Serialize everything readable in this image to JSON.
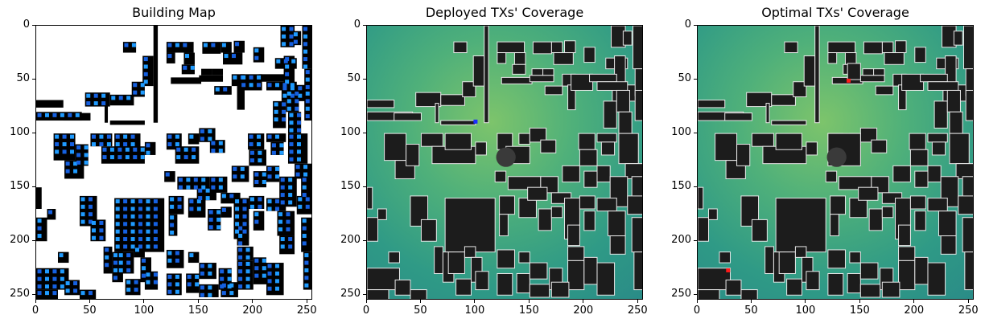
{
  "chart_data": [
    {
      "type": "heatmap",
      "title": "Building Map",
      "xlim": [
        0,
        255
      ],
      "ylim": [
        255,
        0
      ],
      "xticks": [
        0,
        50,
        100,
        150,
        200,
        250
      ],
      "yticks": [
        0,
        50,
        100,
        150,
        200,
        250
      ],
      "background_color": "#ffffff",
      "candidate_marker_colors": [
        "#1f9bff",
        "#1560e0"
      ]
    },
    {
      "type": "heatmap",
      "title": "Deployed TXs' Coverage",
      "xlim": [
        0,
        255
      ],
      "ylim": [
        255,
        0
      ],
      "xticks": [
        0,
        50,
        100,
        150,
        200,
        250
      ],
      "yticks": [
        0,
        50,
        100,
        150,
        200,
        250
      ],
      "transmitters": [
        {
          "x": 100,
          "y": 89,
          "color": "#1a2cff"
        }
      ]
    },
    {
      "type": "heatmap",
      "title": "Optimal TXs' Coverage",
      "xlim": [
        0,
        255
      ],
      "ylim": [
        255,
        0
      ],
      "xticks": [
        0,
        50,
        100,
        150,
        200,
        250
      ],
      "yticks": [
        0,
        50,
        100,
        150,
        200,
        250
      ],
      "transmitters": [
        {
          "x": 139,
          "y": 51,
          "color": "#ff1a1a"
        },
        {
          "x": 28,
          "y": 227,
          "color": "#ff1a1a"
        }
      ]
    }
  ]
}
